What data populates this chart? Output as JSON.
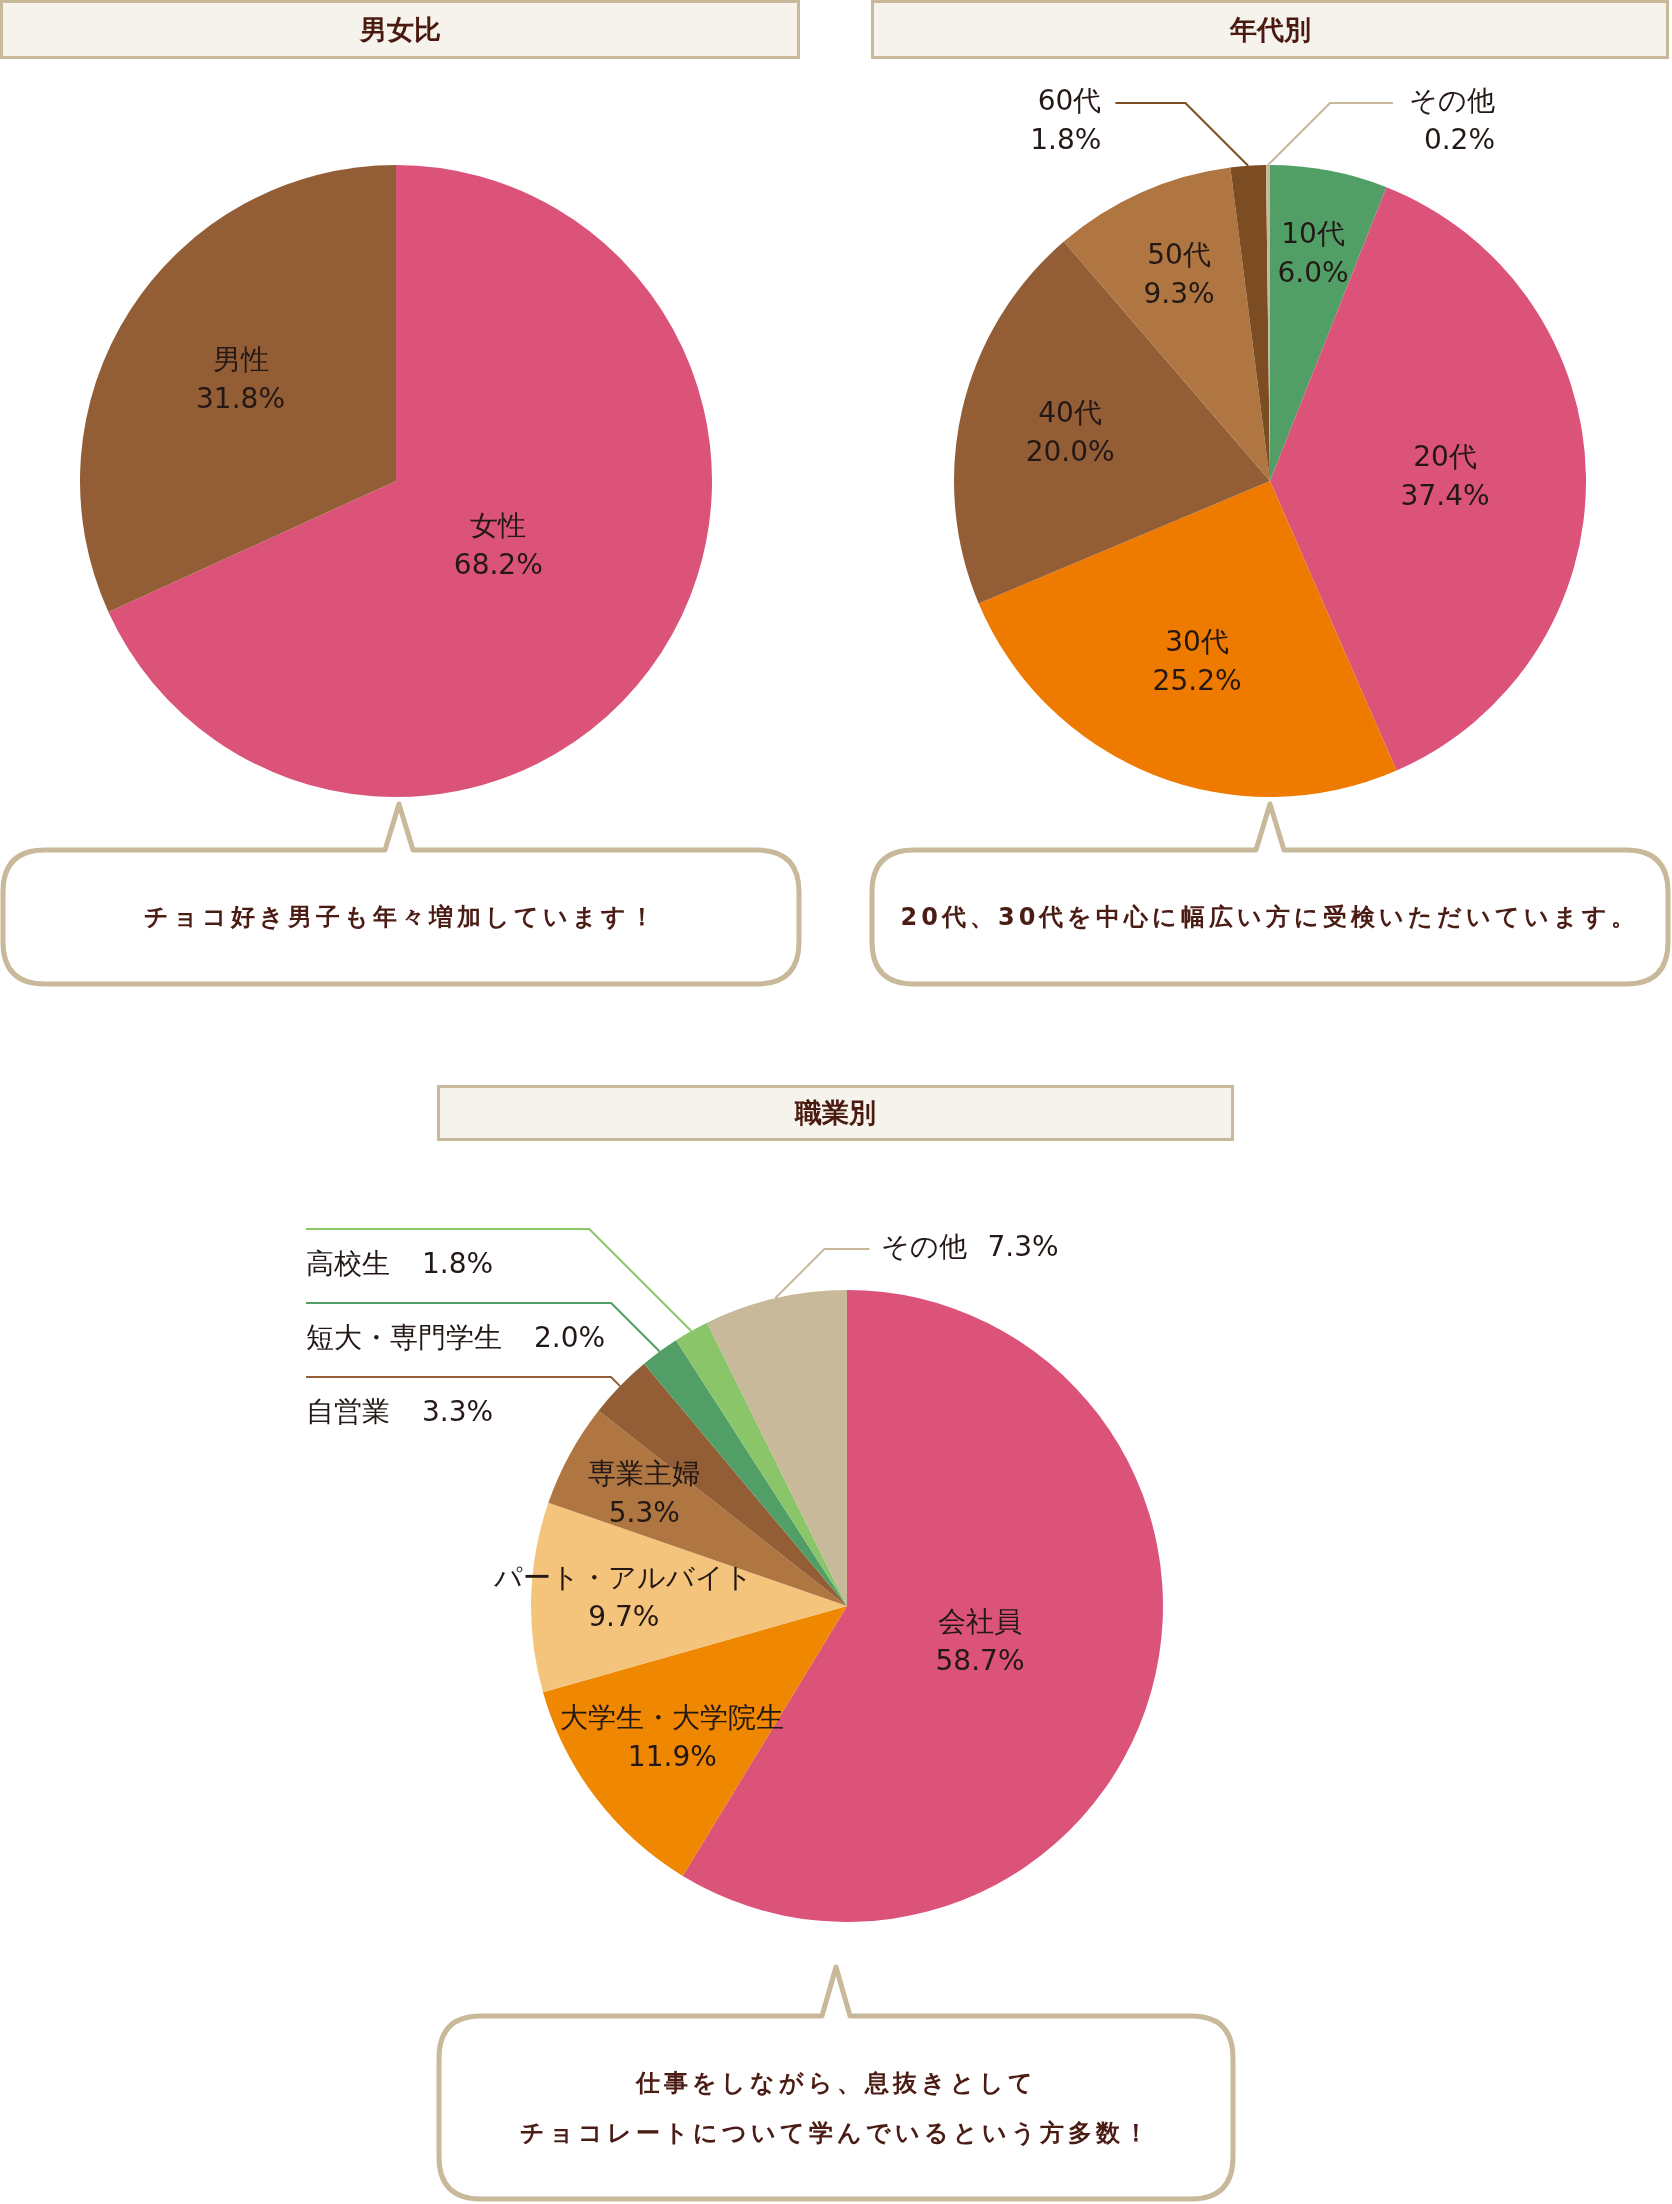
{
  "chart_data": [
    {
      "type": "pie",
      "title": "男女比",
      "categories": [
        "女性",
        "男性"
      ],
      "values": [
        68.2,
        31.8
      ],
      "value_labels": [
        "68.2%",
        "31.8%"
      ],
      "colors": [
        "#db5379",
        "#935e36"
      ],
      "annotations": [
        "チョコ好き男子も年々増加しています！"
      ]
    },
    {
      "type": "pie",
      "title": "年代別",
      "categories": [
        "10代",
        "20代",
        "30代",
        "40代",
        "50代",
        "60代",
        "その他"
      ],
      "values": [
        6.0,
        37.4,
        25.2,
        20.0,
        9.3,
        1.8,
        0.2
      ],
      "value_labels": [
        "6.0%",
        "37.4%",
        "25.2%",
        "20.0%",
        "9.3%",
        "1.8%",
        "0.2%"
      ],
      "colors": [
        "#519f66",
        "#db5379",
        "#ee7a00",
        "#935e36",
        "#b07642",
        "#7c4d22",
        "#c8b99a"
      ],
      "annotations": [
        "20代、30代を中心に幅広い方に受検いただいています。"
      ]
    },
    {
      "type": "pie",
      "title": "職業別",
      "categories": [
        "会社員",
        "大学生・大学院生",
        "パート・アルバイト",
        "専業主婦",
        "自営業",
        "短大・専門学生",
        "高校生",
        "その他"
      ],
      "values": [
        58.7,
        11.9,
        9.7,
        5.3,
        3.3,
        2.0,
        1.8,
        7.3
      ],
      "value_labels": [
        "58.7%",
        "11.9%",
        "9.7%",
        "5.3%",
        "3.3%",
        "2.0%",
        "1.8%",
        "7.3%"
      ],
      "colors": [
        "#db5379",
        "#ef8700",
        "#f5c47c",
        "#b07642",
        "#935e36",
        "#519f66",
        "#8bc569",
        "#c8b99a"
      ],
      "annotations": [
        "仕事をしながら、息抜きとしてチョコレートについて学んでいるという方多数！"
      ]
    }
  ]
}
